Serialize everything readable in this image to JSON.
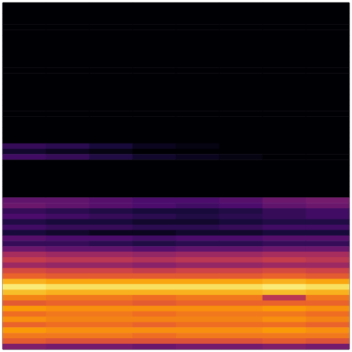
{
  "chart_data": {
    "type": "heatmap",
    "tick_labels": false,
    "zlim": [
      -80,
      0
    ],
    "cells": [
      [
        -80,
        -80,
        -80,
        -80,
        -80,
        -80,
        -80,
        -80
      ],
      [
        -80,
        -80,
        -80,
        -80,
        -80,
        -80,
        -80,
        -80
      ],
      [
        -80,
        -80,
        -80,
        -80,
        -80,
        -80,
        -80,
        -80
      ],
      [
        -80,
        -80,
        -80,
        -80,
        -80,
        -80,
        -80,
        -80
      ],
      [
        -80,
        -80,
        -80,
        -80,
        -80,
        -80,
        -80,
        -80
      ],
      [
        -80,
        -80,
        -80,
        -80,
        -80,
        -80,
        -80,
        -80
      ],
      [
        -80,
        -80,
        -80,
        -80,
        -80,
        -80,
        -80,
        -80
      ],
      [
        -80,
        -80,
        -80,
        -80,
        -80,
        -80,
        -80,
        -80
      ],
      [
        -80,
        -80,
        -80,
        -80,
        -80,
        -80,
        -80,
        -80
      ],
      [
        -80,
        -80,
        -80,
        -80,
        -80,
        -80,
        -80,
        -80
      ],
      [
        -80,
        -80,
        -80,
        -80,
        -80,
        -80,
        -80,
        -80
      ],
      [
        -80,
        -80,
        -80,
        -80,
        -80,
        -80,
        -80,
        -80
      ],
      [
        -80,
        -80,
        -80,
        -80,
        -80,
        -80,
        -80,
        -80
      ],
      [
        -80,
        -80,
        -80,
        -80,
        -80,
        -80,
        -80,
        -80
      ],
      [
        -80,
        -80,
        -80,
        -80,
        -80,
        -80,
        -80,
        -80
      ],
      [
        -80,
        -80,
        -80,
        -80,
        -80,
        -80,
        -80,
        -80
      ],
      [
        -80,
        -80,
        -80,
        -80,
        -80,
        -80,
        -80,
        -80
      ],
      [
        -80,
        -80,
        -80,
        -80,
        -80,
        -80,
        -80,
        -80
      ],
      [
        -80,
        -80,
        -80,
        -80,
        -80,
        -80,
        -80,
        -80
      ],
      [
        -80,
        -80,
        -80,
        -80,
        -80,
        -80,
        -80,
        -80
      ],
      [
        -80,
        -80,
        -80,
        -80,
        -80,
        -80,
        -80,
        -80
      ],
      [
        -80,
        -80,
        -80,
        -80,
        -80,
        -80,
        -80,
        -80
      ],
      [
        -80,
        -80,
        -80,
        -80,
        -80,
        -80,
        -80,
        -80
      ],
      [
        -80,
        -80,
        -80,
        -80,
        -80,
        -80,
        -80,
        -80
      ],
      [
        -80,
        -80,
        -80,
        -80,
        -80,
        -80,
        -80,
        -80
      ],
      [
        -80,
        -80,
        -80,
        -80,
        -80,
        -80,
        -80,
        -80
      ],
      [
        -66,
        -68,
        -72,
        -76,
        -78,
        -80,
        -80,
        -80
      ],
      [
        -74,
        -76,
        -78,
        -80,
        -80,
        -80,
        -80,
        -80
      ],
      [
        -64,
        -66,
        -70,
        -74,
        -76,
        -78,
        -80,
        -80
      ],
      [
        -80,
        -80,
        -80,
        -80,
        -80,
        -80,
        -80,
        -80
      ],
      [
        -80,
        -80,
        -80,
        -80,
        -80,
        -80,
        -80,
        -80
      ],
      [
        -80,
        -80,
        -80,
        -80,
        -80,
        -80,
        -80,
        -80
      ],
      [
        -80,
        -80,
        -80,
        -80,
        -80,
        -80,
        -80,
        -80
      ],
      [
        -80,
        -80,
        -80,
        -80,
        -80,
        -80,
        -80,
        -80
      ],
      [
        -80,
        -80,
        -80,
        -80,
        -80,
        -80,
        -80,
        -80
      ],
      [
        -80,
        -80,
        -80,
        -80,
        -80,
        -80,
        -80,
        -80
      ],
      [
        -58,
        -58,
        -60,
        -62,
        -62,
        -60,
        -56,
        -54
      ],
      [
        -56,
        -58,
        -60,
        -62,
        -64,
        -62,
        -58,
        -56
      ],
      [
        -66,
        -68,
        -70,
        -72,
        -72,
        -70,
        -66,
        -64
      ],
      [
        -62,
        -64,
        -66,
        -68,
        -70,
        -68,
        -66,
        -64
      ],
      [
        -70,
        -72,
        -72,
        -74,
        -74,
        -72,
        -70,
        -70
      ],
      [
        -64,
        -66,
        -66,
        -68,
        -68,
        -66,
        -64,
        -64
      ],
      [
        -72,
        -74,
        -76,
        -76,
        -74,
        -74,
        -72,
        -72
      ],
      [
        -60,
        -62,
        -62,
        -64,
        -62,
        -62,
        -60,
        -60
      ],
      [
        -66,
        -66,
        -68,
        -70,
        -68,
        -68,
        -66,
        -66
      ],
      [
        -56,
        -58,
        -58,
        -60,
        -58,
        -58,
        -56,
        -56
      ],
      [
        -44,
        -46,
        -46,
        -48,
        -46,
        -46,
        -44,
        -44
      ],
      [
        -38,
        -40,
        -40,
        -42,
        -40,
        -40,
        -38,
        -40
      ],
      [
        -46,
        -48,
        -48,
        -50,
        -48,
        -48,
        -46,
        -46
      ],
      [
        -34,
        -36,
        -36,
        -38,
        -36,
        -36,
        -34,
        -36
      ],
      [
        -28,
        -30,
        -30,
        -30,
        -30,
        -30,
        -28,
        -30
      ],
      [
        -14,
        -16,
        -16,
        -16,
        -16,
        -16,
        -14,
        -16
      ],
      [
        -4,
        -6,
        -6,
        -6,
        -6,
        -6,
        -4,
        -6
      ],
      [
        -12,
        -14,
        -14,
        -14,
        -14,
        -14,
        -12,
        -14
      ],
      [
        -22,
        -24,
        -24,
        -26,
        -24,
        -24,
        -40,
        -24
      ],
      [
        -30,
        -28,
        -28,
        -30,
        -28,
        -28,
        -28,
        -28
      ],
      [
        -18,
        -20,
        -20,
        -20,
        -20,
        -20,
        -18,
        -20
      ],
      [
        -26,
        -24,
        -24,
        -26,
        -24,
        -24,
        -24,
        -26
      ],
      [
        -20,
        -22,
        -22,
        -22,
        -22,
        -22,
        -20,
        -22
      ],
      [
        -28,
        -26,
        -26,
        -28,
        -26,
        -26,
        -26,
        -28
      ],
      [
        -18,
        -20,
        -20,
        -20,
        -20,
        -20,
        -18,
        -20
      ],
      [
        -24,
        -24,
        -24,
        -26,
        -24,
        -24,
        -24,
        -24
      ],
      [
        -30,
        -32,
        -32,
        -32,
        -32,
        -32,
        -30,
        -32
      ],
      [
        -52,
        -54,
        -54,
        -56,
        -54,
        -54,
        -52,
        -54
      ]
    ]
  }
}
